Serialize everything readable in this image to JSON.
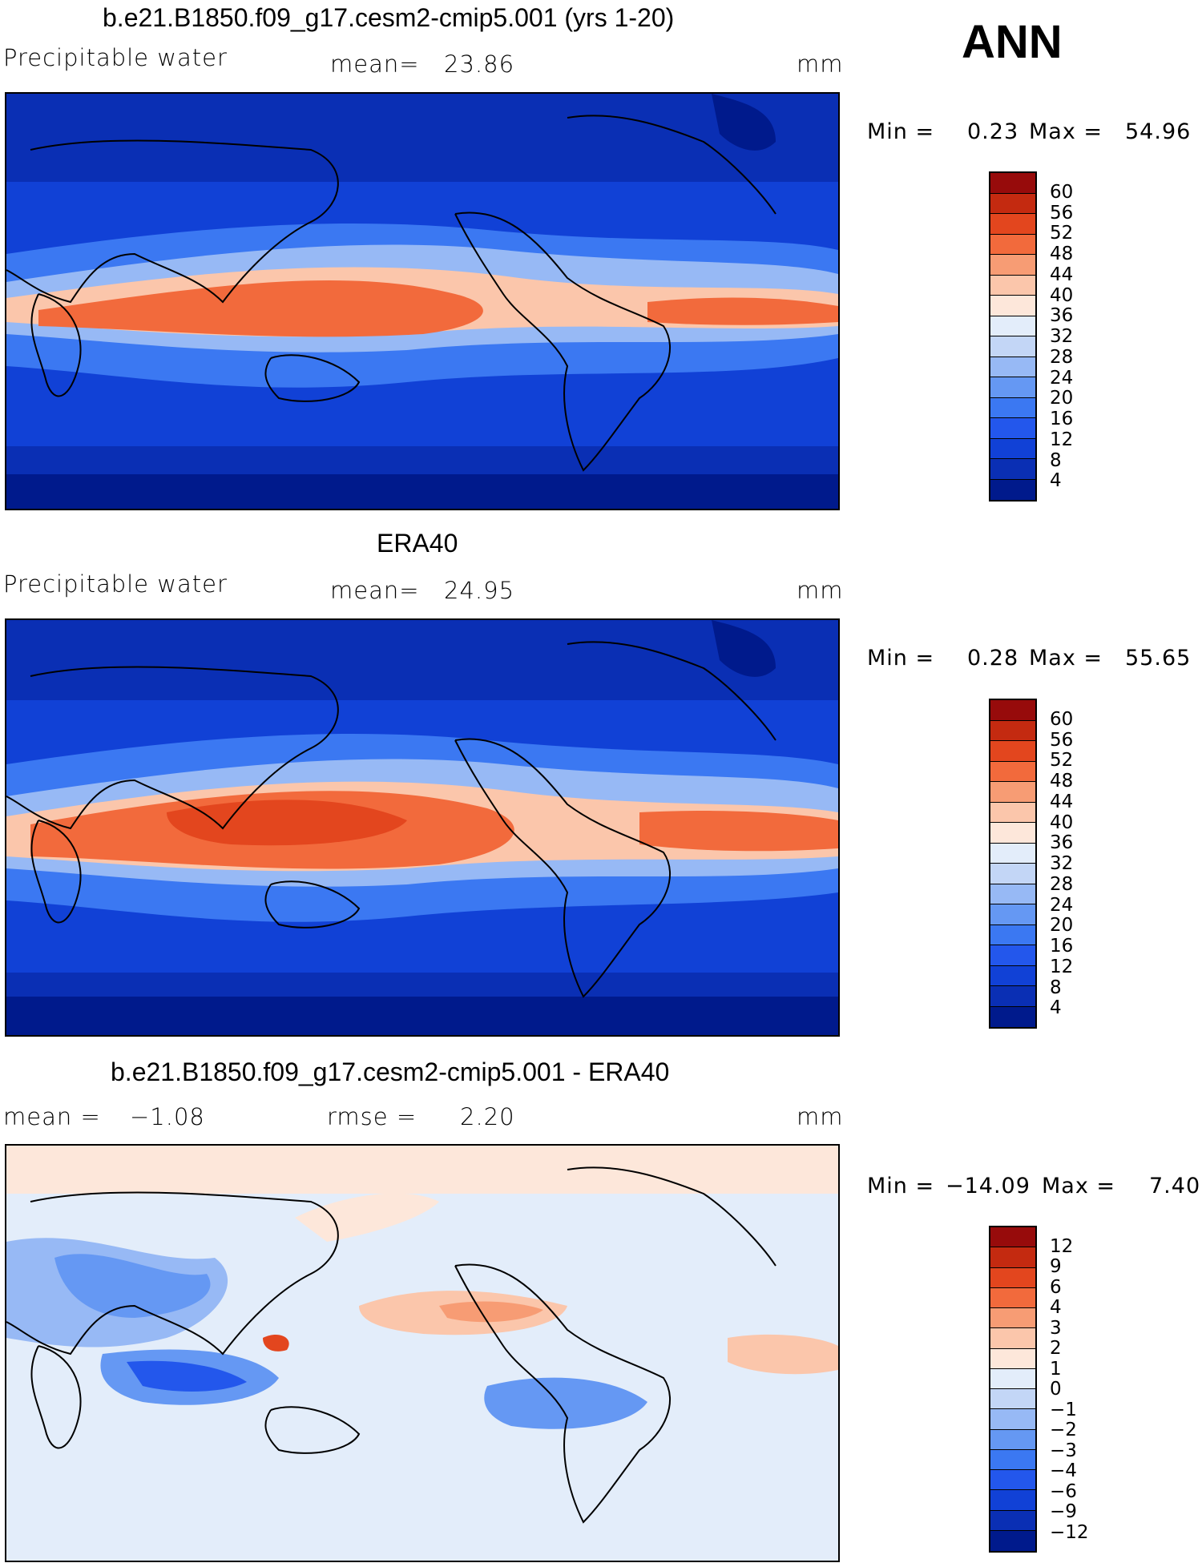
{
  "season": "ANN",
  "colors": {
    "seq": [
      "#001a8c",
      "#0a2fb4",
      "#1141d6",
      "#2357ec",
      "#3b78f2",
      "#6598f3",
      "#97b9f5",
      "#c3d6f6",
      "#e3edfa",
      "#fde7da",
      "#fbc6ab",
      "#f79c74",
      "#f26a3c",
      "#e3461e",
      "#c42a10",
      "#970b0b"
    ],
    "land_line": "#000000"
  },
  "panels": [
    {
      "title": "b.e21.B1850.f09_g17.cesm2-cmip5.001 (yrs 1-20)",
      "left_label": "Precipitable water",
      "stat1_label": "mean=",
      "stat1_value": "23.86",
      "stat2_label": "",
      "stat2_value": "",
      "units": "mm",
      "min_label": "Min =",
      "min_value": "0.23",
      "max_label": "Max =",
      "max_value": "54.96",
      "levels": [
        "60",
        "56",
        "52",
        "48",
        "44",
        "40",
        "36",
        "32",
        "28",
        "24",
        "20",
        "16",
        "12",
        "8",
        "4"
      ]
    },
    {
      "title": "ERA40",
      "left_label": "Precipitable water",
      "stat1_label": "mean=",
      "stat1_value": "24.95",
      "stat2_label": "",
      "stat2_value": "",
      "units": "mm",
      "min_label": "Min =",
      "min_value": "0.28",
      "max_label": "Max =",
      "max_value": "55.65",
      "levels": [
        "60",
        "56",
        "52",
        "48",
        "44",
        "40",
        "36",
        "32",
        "28",
        "24",
        "20",
        "16",
        "12",
        "8",
        "4"
      ]
    },
    {
      "title": "b.e21.B1850.f09_g17.cesm2-cmip5.001 - ERA40",
      "left_label": "",
      "stat1_label": "mean =",
      "stat1_value": "−1.08",
      "stat2_label": "rmse =",
      "stat2_value": "2.20",
      "units": "mm",
      "min_label": "Min =",
      "min_value": "−14.09",
      "max_label": "Max =",
      "max_value": "7.40",
      "levels": [
        "12",
        "9",
        "6",
        "4",
        "3",
        "2",
        "1",
        "0",
        "−1",
        "−2",
        "−3",
        "−4",
        "−6",
        "−9",
        "−12"
      ]
    }
  ]
}
